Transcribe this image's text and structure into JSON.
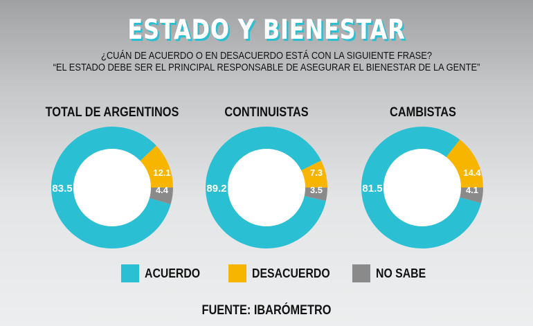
{
  "title": "ESTADO Y BIENESTAR",
  "subtitle_line1": "¿CUÁN DE ACUERDO O EN DESACUERDO ESTÁ CON LA SIGUIENTE FRASE?",
  "subtitle_line2": "“EL ESTADO DEBE SER EL PRINCIPAL RESPONSABLE DE ASEGURAR EL BIENESTAR DE LA GENTE”",
  "source": "FUENTE: IBARÓMETRO",
  "colors": {
    "acuerdo": "#2bbfd4",
    "desacuerdo": "#f7b500",
    "no_sabe": "#8a8a8a"
  },
  "legend": [
    {
      "label": "ACUERDO",
      "color": "#2bbfd4"
    },
    {
      "label": "DESACUERDO",
      "color": "#f7b500"
    },
    {
      "label": "NO SABE",
      "color": "#8a8a8a"
    }
  ],
  "chart_data": [
    {
      "type": "pie",
      "title": "TOTAL DE ARGENTINOS",
      "categories": [
        "ACUERDO",
        "DESACUERDO",
        "NO SABE"
      ],
      "values": [
        83.5,
        12.1,
        4.4
      ],
      "labels": [
        "83.5",
        "12.1",
        "4.4"
      ]
    },
    {
      "type": "pie",
      "title": "CONTINUISTAS",
      "categories": [
        "ACUERDO",
        "DESACUERDO",
        "NO SABE"
      ],
      "values": [
        89.2,
        7.3,
        3.5
      ],
      "labels": [
        "89.2",
        "7.3",
        "3.5"
      ]
    },
    {
      "type": "pie",
      "title": "CAMBISTAS",
      "categories": [
        "ACUERDO",
        "DESACUERDO",
        "NO SABE"
      ],
      "values": [
        81.5,
        14.4,
        4.1
      ],
      "labels": [
        "81.5",
        "14.4",
        "4.1"
      ]
    }
  ]
}
